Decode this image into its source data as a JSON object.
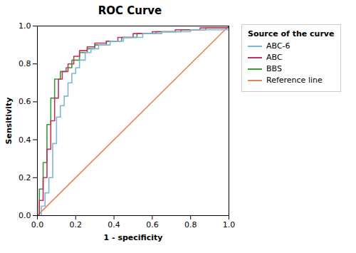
{
  "chart_data": {
    "type": "line",
    "title": "ROC Curve",
    "xlabel": "1 - specificity",
    "ylabel": "Sensitivity",
    "xlim": [
      0.0,
      1.0
    ],
    "ylim": [
      0.0,
      1.0
    ],
    "xticks": [
      {
        "value": 0.0,
        "label": "0.0"
      },
      0.2,
      0.4,
      0.6,
      0.8,
      {
        "value": 1.0,
        "label": "1.0"
      }
    ],
    "yticks": [
      {
        "value": 0.0,
        "label": "0.0"
      },
      0.2,
      0.4,
      0.6,
      0.8,
      {
        "value": 1.0,
        "label": "1.0"
      }
    ],
    "legend": "right",
    "legend_title": "Source of the curve",
    "series": [
      {
        "name": "ABC-6",
        "color": "#7EB6D9",
        "x": [
          0.0,
          0.02,
          0.02,
          0.04,
          0.04,
          0.06,
          0.06,
          0.08,
          0.08,
          0.1,
          0.1,
          0.12,
          0.12,
          0.14,
          0.14,
          0.16,
          0.16,
          0.18,
          0.18,
          0.2,
          0.2,
          0.22,
          0.22,
          0.25,
          0.25,
          0.28,
          0.28,
          0.32,
          0.32,
          0.38,
          0.38,
          0.45,
          0.45,
          0.55,
          0.55,
          0.65,
          0.65,
          0.8,
          0.8,
          1.0
        ],
        "values": [
          0.0,
          0.0,
          0.05,
          0.05,
          0.12,
          0.12,
          0.2,
          0.2,
          0.38,
          0.38,
          0.52,
          0.52,
          0.58,
          0.58,
          0.63,
          0.63,
          0.7,
          0.7,
          0.75,
          0.75,
          0.78,
          0.78,
          0.82,
          0.82,
          0.86,
          0.86,
          0.88,
          0.88,
          0.9,
          0.9,
          0.92,
          0.92,
          0.94,
          0.94,
          0.96,
          0.96,
          0.97,
          0.97,
          0.98,
          0.98
        ]
      },
      {
        "name": "ABC",
        "color": "#C0335A",
        "x": [
          0.0,
          0.01,
          0.01,
          0.03,
          0.03,
          0.05,
          0.05,
          0.07,
          0.07,
          0.09,
          0.09,
          0.11,
          0.11,
          0.13,
          0.13,
          0.16,
          0.16,
          0.19,
          0.19,
          0.22,
          0.22,
          0.26,
          0.26,
          0.3,
          0.3,
          0.36,
          0.36,
          0.42,
          0.42,
          0.5,
          0.5,
          0.6,
          0.6,
          0.72,
          0.72,
          0.85,
          0.85,
          1.0
        ],
        "values": [
          0.0,
          0.0,
          0.08,
          0.08,
          0.2,
          0.2,
          0.35,
          0.35,
          0.5,
          0.5,
          0.62,
          0.62,
          0.72,
          0.72,
          0.76,
          0.76,
          0.8,
          0.8,
          0.84,
          0.84,
          0.87,
          0.87,
          0.89,
          0.89,
          0.91,
          0.91,
          0.92,
          0.92,
          0.94,
          0.94,
          0.96,
          0.96,
          0.97,
          0.97,
          0.98,
          0.98,
          0.99,
          0.99
        ]
      },
      {
        "name": "BBS",
        "color": "#3A9A3A",
        "x": [
          0.0,
          0.01,
          0.01,
          0.03,
          0.03,
          0.05,
          0.05,
          0.07,
          0.07,
          0.09,
          0.09,
          0.12,
          0.12,
          0.15,
          0.15,
          0.18,
          0.18,
          0.22,
          0.22,
          0.26,
          0.26,
          0.3,
          0.3,
          0.36,
          0.36,
          0.44,
          0.44,
          0.52,
          0.52,
          0.62,
          0.62,
          0.75,
          0.75,
          0.88,
          0.88,
          1.0
        ],
        "values": [
          0.0,
          0.0,
          0.14,
          0.14,
          0.28,
          0.28,
          0.48,
          0.48,
          0.62,
          0.62,
          0.72,
          0.72,
          0.76,
          0.76,
          0.78,
          0.78,
          0.82,
          0.82,
          0.86,
          0.86,
          0.88,
          0.88,
          0.9,
          0.9,
          0.92,
          0.92,
          0.94,
          0.94,
          0.96,
          0.96,
          0.97,
          0.97,
          0.98,
          0.98,
          0.99,
          0.99
        ]
      },
      {
        "name": "Reference line",
        "color": "#E8845A",
        "x": [
          0,
          1
        ],
        "values": [
          0,
          1
        ]
      }
    ]
  }
}
